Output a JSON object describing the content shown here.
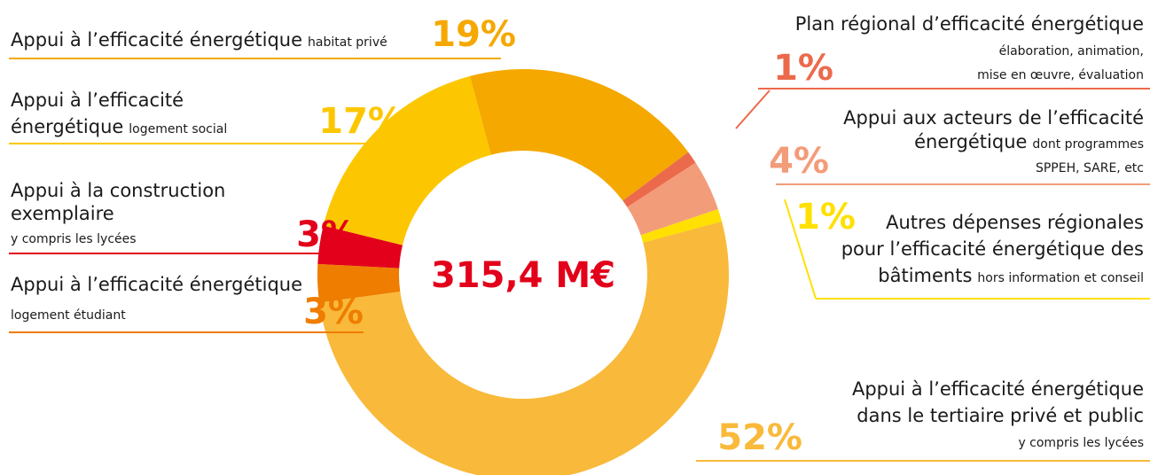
{
  "chart_data": {
    "type": "donut",
    "center_label": "315,4 M€",
    "values": [
      19,
      1,
      4,
      1,
      52,
      3,
      3,
      17
    ],
    "value_labels": [
      "19%",
      "1%",
      "4%",
      "1%",
      "52%",
      "3%",
      "3%",
      "17%"
    ],
    "colors": [
      "#f5a800",
      "#ec6a4c",
      "#f39c7a",
      "#ffe000",
      "#f9b93a",
      "#ee7d00",
      "#e2001a",
      "#fcc700"
    ],
    "labels": [
      [
        [
          {
            "text": "Appui à l’efficacité énergétique",
            "size": "large"
          },
          {
            "text": "habitat privé",
            "size": "small"
          }
        ]
      ],
      [
        [
          {
            "text": "Plan régional d’efficacité énergétique",
            "size": "large"
          }
        ],
        [
          {
            "text": "élaboration, animation,",
            "size": "small"
          }
        ],
        [
          {
            "text": "mise en œuvre, évaluation",
            "size": "small"
          }
        ]
      ],
      [
        [
          {
            "text": "Appui aux acteurs de l’efficacité",
            "size": "large"
          }
        ],
        [
          {
            "text": "énergétique",
            "size": "large"
          },
          {
            "text": "dont programmes",
            "size": "small"
          }
        ],
        [
          {
            "text": "SPPEH, SARE, etc",
            "size": "small"
          }
        ]
      ],
      [
        [
          {
            "text": "Autres dépenses régionales",
            "size": "large"
          }
        ],
        [
          {
            "text": "pour l’efficacité énergétique des",
            "size": "large"
          }
        ],
        [
          {
            "text": "bâtiments",
            "size": "large"
          },
          {
            "text": "hors information et conseil",
            "size": "small"
          }
        ]
      ],
      [
        [
          {
            "text": "Appui à l’efficacité énergétique",
            "size": "large"
          }
        ],
        [
          {
            "text": "dans le tertiaire privé et public",
            "size": "large"
          }
        ],
        [
          {
            "text": "y compris les lycées",
            "size": "small"
          }
        ]
      ],
      [
        [
          {
            "text": "Appui à l’efficacité énergétique",
            "size": "large"
          }
        ],
        [
          {
            "text": "logement étudiant",
            "size": "small"
          }
        ]
      ],
      [
        [
          {
            "text": "Appui à la construction",
            "size": "large"
          }
        ],
        [
          {
            "text": "exemplaire",
            "size": "large"
          }
        ],
        [
          {
            "text": "y compris les lycées",
            "size": "small"
          }
        ]
      ],
      [
        [
          {
            "text": "Appui à l’efficacité",
            "size": "large"
          }
        ],
        [
          {
            "text": "énergétique",
            "size": "large"
          },
          {
            "text": "logement social",
            "size": "small"
          }
        ]
      ]
    ]
  }
}
